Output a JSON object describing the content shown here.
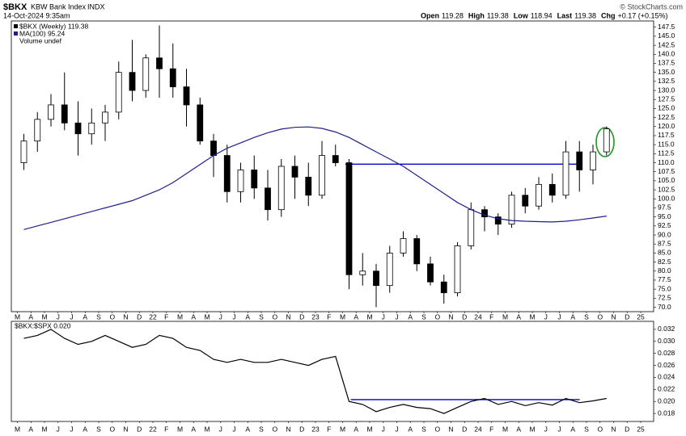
{
  "header": {
    "symbol": "$BKX",
    "name": "KBW Bank Index",
    "exchange": "INDX",
    "timestamp": "14-Oct-2024 9:35am",
    "quote": [
      {
        "label": "Open",
        "value": "119.28"
      },
      {
        "label": "High",
        "value": "119.38"
      },
      {
        "label": "Low",
        "value": "118.94"
      },
      {
        "label": "Last",
        "value": "119.38"
      },
      {
        "label": "Chg",
        "value": "+0.17 (+0.15%)"
      }
    ],
    "copyright": "© StockCharts.com"
  },
  "chart_data": [
    {
      "type": "candlestick",
      "categories": [
        "M",
        "A",
        "M",
        "J",
        "J",
        "A",
        "S",
        "O",
        "N",
        "D",
        "22",
        "F",
        "M",
        "A",
        "M",
        "J",
        "J",
        "A",
        "S",
        "O",
        "N",
        "D",
        "23",
        "F",
        "M",
        "A",
        "M",
        "J",
        "J",
        "A",
        "S",
        "O",
        "N",
        "D",
        "24",
        "F",
        "M",
        "A",
        "M",
        "J",
        "J",
        "A",
        "S",
        "O",
        "N",
        "D",
        "25"
      ],
      "series": [
        {
          "name": "$BKX (Weekly) 119.38",
          "color": "#000000",
          "open": [
            110,
            116,
            122,
            126,
            121,
            118,
            121,
            124,
            135,
            130,
            139,
            136,
            131,
            126,
            116,
            112,
            102,
            108,
            103,
            97,
            109,
            106,
            101,
            112,
            110,
            79,
            80,
            76,
            85,
            89,
            82,
            77,
            74,
            87,
            97,
            95,
            93,
            101,
            98,
            104,
            101,
            113,
            108,
            113,
            null,
            null,
            null
          ],
          "high": [
            118,
            124,
            129,
            135,
            127,
            125,
            126,
            138,
            144,
            140,
            148,
            143,
            136,
            128,
            118,
            115,
            110,
            112,
            108,
            111,
            112,
            110,
            116,
            115,
            111,
            85,
            82,
            87,
            91,
            90,
            84,
            79,
            88,
            99,
            98,
            96,
            102,
            103,
            106,
            107,
            116,
            116,
            115,
            120,
            null,
            null,
            null
          ],
          "low": [
            108,
            113,
            120,
            119,
            112,
            115,
            116,
            122,
            127,
            128,
            128,
            128,
            120,
            115,
            106,
            99,
            99,
            100,
            94,
            95,
            100,
            98,
            100,
            109,
            75,
            76,
            70,
            74,
            84,
            80,
            76,
            71,
            73,
            86,
            91,
            90,
            92,
            96,
            97,
            99,
            100,
            102,
            104,
            112,
            null,
            null,
            null
          ],
          "close": [
            116,
            122,
            126,
            121,
            118,
            121,
            124,
            135,
            130,
            139,
            136,
            131,
            126,
            116,
            112,
            102,
            108,
            103,
            97,
            109,
            106,
            101,
            112,
            110,
            79,
            80,
            76,
            85,
            89,
            82,
            77,
            74,
            87,
            97,
            95,
            93,
            101,
            98,
            104,
            101,
            113,
            108,
            113,
            119.38,
            null,
            null,
            null
          ]
        },
        {
          "name": "MA(100) 95.24",
          "color": "#1f1f8f",
          "values": [
            91.5,
            92.5,
            93.5,
            94.5,
            95.5,
            96.5,
            97.5,
            98.5,
            99.5,
            101,
            102.5,
            104.5,
            107,
            109.5,
            112,
            114,
            115.5,
            117,
            118.3,
            119.3,
            119.8,
            119.9,
            119.5,
            118.5,
            117,
            115,
            113,
            111,
            109,
            106.5,
            104,
            101.5,
            99,
            97,
            95.5,
            94.5,
            94,
            93.8,
            93.7,
            93.6,
            93.8,
            94.2,
            94.7,
            95.24,
            null,
            null,
            null
          ]
        }
      ],
      "volume_note": "Volume undef",
      "levels": [
        {
          "value": 109.6,
          "color": "#0000cc"
        }
      ],
      "ylim": [
        69,
        149
      ],
      "yticks": [
        {
          "value": 70,
          "label": "70.0"
        },
        72.5,
        {
          "value": 75,
          "label": "75.0"
        },
        77.5,
        {
          "value": 80,
          "label": "80.0"
        },
        82.5,
        {
          "value": 85,
          "label": "85.0"
        },
        87.5,
        {
          "value": 90,
          "label": "90.0"
        },
        92.5,
        {
          "value": 95,
          "label": "95.0"
        },
        97.5,
        {
          "value": 100,
          "label": "100.0"
        },
        102.5,
        {
          "value": 105,
          "label": "105.0"
        },
        107.5,
        {
          "value": 110,
          "label": "110.0"
        },
        112.5,
        {
          "value": 115,
          "label": "115.0"
        },
        117.5,
        {
          "value": 120,
          "label": "120.0"
        },
        122.5,
        {
          "value": 125,
          "label": "125.0"
        },
        127.5,
        {
          "value": 130,
          "label": "130.0"
        },
        132.5,
        {
          "value": 135,
          "label": "135.0"
        },
        137.5,
        {
          "value": 140,
          "label": "140.0"
        },
        142.5,
        {
          "value": 145,
          "label": "145.0"
        },
        147.5
      ]
    },
    {
      "type": "line",
      "categories": [
        "M",
        "A",
        "M",
        "J",
        "J",
        "A",
        "S",
        "O",
        "N",
        "D",
        "22",
        "F",
        "M",
        "A",
        "M",
        "J",
        "J",
        "A",
        "S",
        "O",
        "N",
        "D",
        "23",
        "F",
        "M",
        "A",
        "M",
        "J",
        "J",
        "A",
        "S",
        "O",
        "N",
        "D",
        "24",
        "F",
        "M",
        "A",
        "M",
        "J",
        "J",
        "A",
        "S",
        "O",
        "N",
        "D",
        "25"
      ],
      "series": [
        {
          "name": "$BKX:$SPX 0.020",
          "color": "#000000",
          "values": [
            0.0305,
            0.031,
            0.032,
            0.0305,
            0.0295,
            0.03,
            0.031,
            0.03,
            0.029,
            0.0295,
            0.031,
            0.0305,
            0.029,
            0.0285,
            0.027,
            0.0265,
            0.027,
            0.0265,
            0.0265,
            0.027,
            0.0265,
            0.026,
            0.027,
            0.0275,
            0.02,
            0.0195,
            0.0183,
            0.019,
            0.0195,
            0.019,
            0.0188,
            0.018,
            0.019,
            0.02,
            0.0205,
            0.0195,
            0.02,
            0.0193,
            0.0198,
            0.0194,
            0.0205,
            0.0198,
            0.0201,
            0.0205,
            null,
            null,
            null
          ]
        }
      ],
      "levels": [
        {
          "value": 0.0203,
          "color": "#0000cc"
        }
      ],
      "ylim": [
        0.0168,
        0.0332
      ],
      "yticks": [
        {
          "value": 0.018,
          "label": "0.018"
        },
        {
          "value": 0.02,
          "label": "0.020"
        },
        0.022,
        0.024,
        0.026,
        0.028,
        {
          "value": 0.03,
          "label": "0.030"
        },
        0.032
      ]
    }
  ]
}
